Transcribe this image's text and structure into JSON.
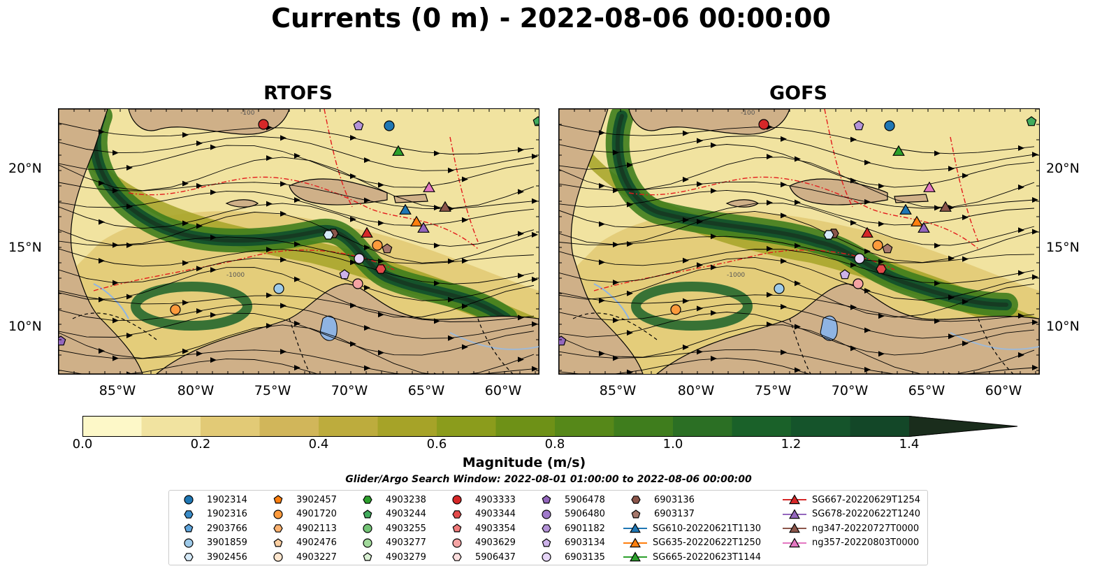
{
  "title": "Currents (0 m) - 2022-08-06 00:00:00",
  "panels": [
    {
      "title": "RTOFS"
    },
    {
      "title": "GOFS"
    }
  ],
  "axes": {
    "lon_ticks": [
      "85°W",
      "80°W",
      "75°W",
      "70°W",
      "65°W",
      "60°W"
    ],
    "lat_ticks": [
      "20°N",
      "15°N",
      "10°N"
    ]
  },
  "colorbar": {
    "label": "Magnitude (m/s)",
    "ticks": [
      "0.0",
      "0.2",
      "0.4",
      "0.6",
      "0.8",
      "1.0",
      "1.2",
      "1.4"
    ],
    "colors": [
      "#fdf8c8",
      "#f1e3a0",
      "#e2ca76",
      "#d1b65a",
      "#bdac3d",
      "#a6a328",
      "#8b9c1c",
      "#6e9117",
      "#568819",
      "#3f7d1d",
      "#2b6f24",
      "#1a6129",
      "#15542b",
      "#134728",
      "#163b22",
      "#1a2d1c"
    ]
  },
  "contour_labels": [
    "-100",
    "-1000"
  ],
  "search_window": "Glider/Argo Search Window: 2022-08-01 01:00:00 to 2022-08-06 00:00:00",
  "legend": [
    {
      "label": "1902314",
      "marker": "circle",
      "color": "#1f77b4"
    },
    {
      "label": "1902316",
      "marker": "hexagon",
      "color": "#3a8cc8"
    },
    {
      "label": "2903766",
      "marker": "pentagon",
      "color": "#5fa5dd"
    },
    {
      "label": "3901859",
      "marker": "circle",
      "color": "#9ecae9"
    },
    {
      "label": "3902456",
      "marker": "hexagon",
      "color": "#d6eaf8"
    },
    {
      "label": "3902457",
      "marker": "pentagon",
      "color": "#ff7f0e"
    },
    {
      "label": "4901720",
      "marker": "circle",
      "color": "#fd9a3c"
    },
    {
      "label": "4902113",
      "marker": "hexagon",
      "color": "#fdb26f"
    },
    {
      "label": "4902476",
      "marker": "pentagon",
      "color": "#fdd0a2"
    },
    {
      "label": "4903227",
      "marker": "circle",
      "color": "#fee6ce"
    },
    {
      "label": "4903238",
      "marker": "hexagon",
      "color": "#2ca02c"
    },
    {
      "label": "4903244",
      "marker": "pentagon",
      "color": "#41ab5d"
    },
    {
      "label": "4903255",
      "marker": "circle",
      "color": "#74c476"
    },
    {
      "label": "4903277",
      "marker": "circle",
      "color": "#a1d99b"
    },
    {
      "label": "4903279",
      "marker": "pentagon",
      "color": "#d9f0d3"
    },
    {
      "label": "4903333",
      "marker": "circle",
      "color": "#d62728"
    },
    {
      "label": "4903344",
      "marker": "hexagon",
      "color": "#e34a4a"
    },
    {
      "label": "4903354",
      "marker": "pentagon",
      "color": "#f07a7a"
    },
    {
      "label": "4903629",
      "marker": "circle",
      "color": "#f4a3a3"
    },
    {
      "label": "5906437",
      "marker": "hexagon",
      "color": "#fcdede"
    },
    {
      "label": "5906478",
      "marker": "pentagon",
      "color": "#9467bd"
    },
    {
      "label": "5906480",
      "marker": "circle",
      "color": "#a07acb"
    },
    {
      "label": "6901182",
      "marker": "hexagon",
      "color": "#b493d8"
    },
    {
      "label": "6903134",
      "marker": "pentagon",
      "color": "#cdb2ea"
    },
    {
      "label": "6903135",
      "marker": "circle",
      "color": "#e6d5f7"
    },
    {
      "label": "6903136",
      "marker": "hexagon",
      "color": "#8c564b"
    },
    {
      "label": "6903137",
      "marker": "pentagon",
      "color": "#a6776b"
    },
    {
      "label": "SG610-20220621T1130",
      "marker": "triangle-line",
      "color": "#1f77b4"
    },
    {
      "label": "SG635-20220622T1250",
      "marker": "triangle-line",
      "color": "#ff7f0e"
    },
    {
      "label": "SG665-20220623T1144",
      "marker": "triangle-line",
      "color": "#2ca02c"
    },
    {
      "label": "SG667-20220629T1254",
      "marker": "triangle-line",
      "color": "#d62728"
    },
    {
      "label": "SG678-20220622T1240",
      "marker": "triangle-line",
      "color": "#9467bd"
    },
    {
      "label": "ng347-20220727T0000",
      "marker": "triangle-line",
      "color": "#8c564b"
    },
    {
      "label": "ng357-20220803T0000",
      "marker": "triangle-line",
      "color": "#e377c2"
    }
  ]
}
